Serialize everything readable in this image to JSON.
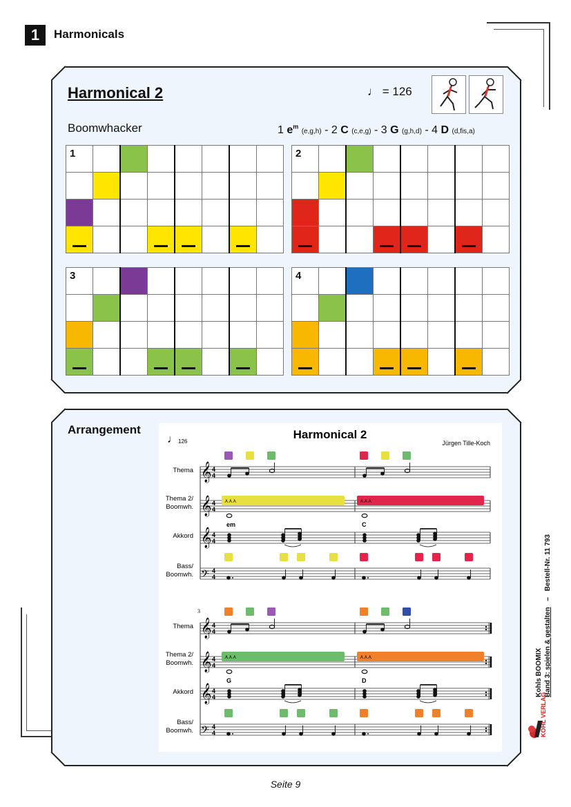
{
  "chapter": {
    "number": "1",
    "title": "Harmonicals"
  },
  "card": {
    "title": "Harmonical 2",
    "tempo_symbol": "♩",
    "tempo_text": "= 126",
    "instrument": "Boomwhacker",
    "chords": [
      {
        "num": "1",
        "name": "e",
        "sup": "m",
        "notes": "(e,g,h)"
      },
      {
        "num": "2",
        "name": "C",
        "sup": "",
        "notes": "(c,e,g)"
      },
      {
        "num": "3",
        "name": "G",
        "sup": "",
        "notes": "(g,h,d)"
      },
      {
        "num": "4",
        "name": "D",
        "sup": "",
        "notes": "(d,fis,a)"
      }
    ]
  },
  "grids": [
    {
      "label": "1",
      "cells": [
        [
          null,
          null,
          "#8bc34a",
          null,
          null,
          null,
          null,
          null
        ],
        [
          null,
          "#ffe600",
          null,
          null,
          null,
          null,
          null,
          null
        ],
        [
          "#7b3a96",
          null,
          null,
          null,
          null,
          null,
          null,
          null
        ],
        [
          "#ffe600",
          null,
          null,
          "#ffe600",
          "#ffe600",
          null,
          "#ffe600",
          null
        ]
      ]
    },
    {
      "label": "2",
      "cells": [
        [
          null,
          null,
          "#8bc34a",
          null,
          null,
          null,
          null,
          null
        ],
        [
          null,
          "#ffe600",
          null,
          null,
          null,
          null,
          null,
          null
        ],
        [
          "#e0261b",
          null,
          null,
          null,
          null,
          null,
          null,
          null
        ],
        [
          "#e0261b",
          null,
          null,
          "#e0261b",
          "#e0261b",
          null,
          "#e0261b",
          null
        ]
      ]
    },
    {
      "label": "3",
      "cells": [
        [
          null,
          null,
          "#7b3a96",
          null,
          null,
          null,
          null,
          null
        ],
        [
          null,
          "#8bc34a",
          null,
          null,
          null,
          null,
          null,
          null
        ],
        [
          "#f9b800",
          null,
          null,
          null,
          null,
          null,
          null,
          null
        ],
        [
          "#8bc34a",
          null,
          null,
          "#8bc34a",
          "#8bc34a",
          null,
          "#8bc34a",
          null
        ]
      ]
    },
    {
      "label": "4",
      "cells": [
        [
          null,
          null,
          "#1e6fbf",
          null,
          null,
          null,
          null,
          null
        ],
        [
          null,
          "#8bc34a",
          null,
          null,
          null,
          null,
          null,
          null
        ],
        [
          "#f9b800",
          null,
          null,
          null,
          null,
          null,
          null,
          null
        ],
        [
          "#f9b800",
          null,
          null,
          "#f9b800",
          "#f9b800",
          null,
          "#f9b800",
          null
        ]
      ]
    }
  ],
  "arrangement": {
    "label": "Arrangement",
    "score_title": "Harmonical 2",
    "composer": "Jürgen Tille-Koch",
    "tempo": "126",
    "measure_number": "3",
    "staff_labels": [
      "Thema",
      "Thema 2/\nBoomwh.",
      "Akkord",
      "Bass/\nBoomwh."
    ],
    "systems": [
      {
        "chords": [
          "em",
          "C"
        ],
        "thema_colors": [
          [
            "#9b59b6",
            "#e8e040",
            "#6dbb6d"
          ],
          [
            "#e0264a",
            "#e8e040",
            "#6dbb6d"
          ]
        ],
        "bar_colors": [
          "#e8e040",
          "#e0264a"
        ],
        "bass_colors": [
          "#e8e040",
          "#e0264a"
        ]
      },
      {
        "chords": [
          "G",
          "D"
        ],
        "thema_colors": [
          [
            "#f0802a",
            "#6dbb6d",
            "#9b59b6"
          ],
          [
            "#f0802a",
            "#6dbb6d",
            "#2f4fa8"
          ]
        ],
        "bar_colors": [
          "#6dbb6d",
          "#f0802a"
        ],
        "bass_colors": [
          "#6dbb6d",
          "#f0802a"
        ]
      }
    ]
  },
  "sidebar": {
    "line1": "Kohls BOOMIX",
    "line2": "Band 3: spielen & gestalten",
    "sep": "–",
    "line3": "Bestell-Nr. 11 793",
    "publisher": "KOHL VERLAG"
  },
  "footer": {
    "page": "Seite 9"
  }
}
